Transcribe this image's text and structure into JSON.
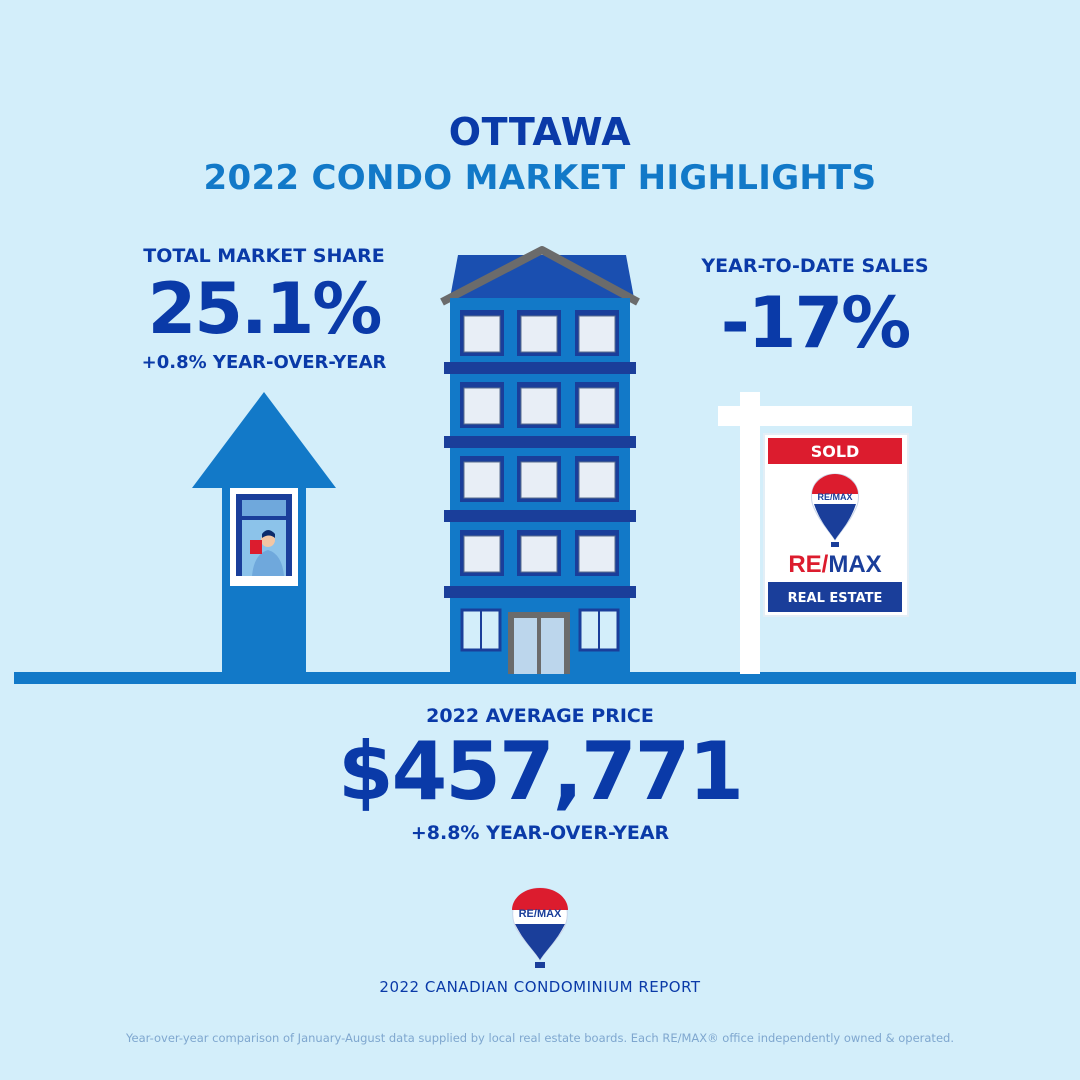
{
  "header": {
    "city": "OTTAWA",
    "title": "2022 CONDO MARKET HIGHLIGHTS"
  },
  "market_share": {
    "label": "TOTAL MARKET SHARE",
    "value": "25.1%",
    "change": "+0.8% YEAR-OVER-YEAR"
  },
  "ytd_sales": {
    "label": "YEAR-TO-DATE SALES",
    "value": "-17%"
  },
  "sign": {
    "sold": "SOLD",
    "brand": "RE/MAX",
    "tagline": "REAL ESTATE"
  },
  "avg_price": {
    "label": "2022 AVERAGE PRICE",
    "value": "$457,771",
    "change": "+8.8% YEAR-OVER-YEAR"
  },
  "footer": {
    "report": "2022 CANADIAN CONDOMINIUM REPORT",
    "disclaimer": "Year-over-year comparison of January-August data supplied by local real estate boards. Each RE/MAX® office independently owned & operated."
  },
  "colors": {
    "background": "#d3eefa",
    "navy": "#0a3aa8",
    "blue": "#1279c8",
    "remax_red": "#dc1c2e",
    "remax_blue": "#1a3e9a"
  },
  "icons": [
    "up-arrow-icon",
    "condo-building-icon",
    "sold-sign-icon",
    "remax-balloon-icon"
  ]
}
